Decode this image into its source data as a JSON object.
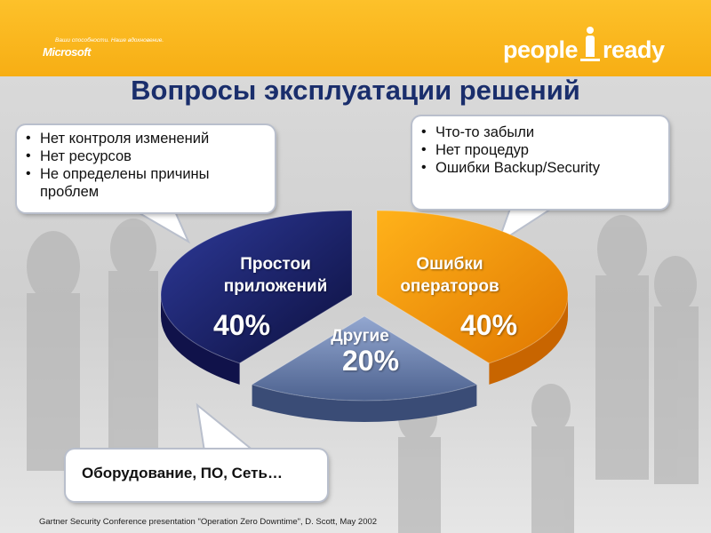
{
  "header": {
    "ms_tagline": "Ваши способности. Наше вдохновение.",
    "ms_logo": "Microsoft",
    "brand_left": "people",
    "brand_right": "ready"
  },
  "title": "Вопросы эксплуатации решений",
  "callouts": {
    "left": [
      "Нет контроля изменений",
      "Нет ресурсов",
      "Не определены причины проблем"
    ],
    "right": [
      "Что-то забыли",
      "Нет процедур",
      "Ошибки Backup/Security"
    ],
    "bottom": "Оборудование, ПО, Сеть…"
  },
  "chart_data": {
    "type": "pie",
    "title": "",
    "slices": [
      {
        "label": "Простои приложений",
        "value": 40,
        "display": "40%",
        "color": "#1d2266"
      },
      {
        "label": "Ошибки операторов",
        "value": 40,
        "display": "40%",
        "color": "#f59300"
      },
      {
        "label": "Другие",
        "value": 20,
        "display": "20%",
        "color": "#6e87b8"
      }
    ]
  },
  "footnote": "Gartner Security Conference presentation \"Operation Zero Downtime\", D. Scott, May 2002"
}
